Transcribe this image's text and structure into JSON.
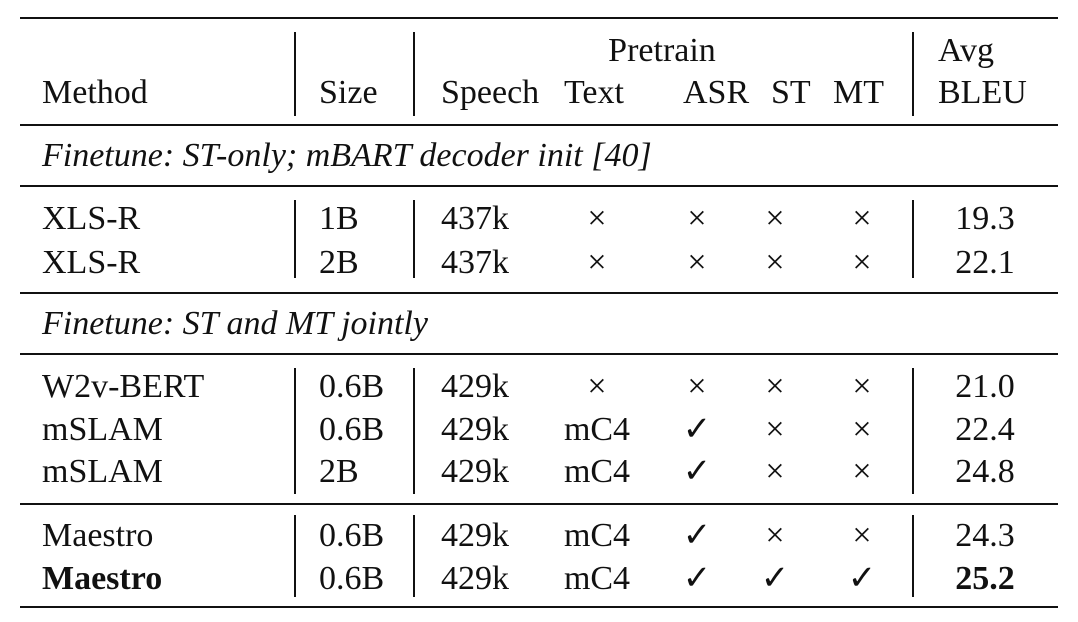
{
  "header": {
    "method": "Method",
    "size": "Size",
    "pretrain_group": "Pretrain",
    "speech": "Speech",
    "text": "Text",
    "asr": "ASR",
    "st": "ST",
    "mt": "MT",
    "avg": "Avg",
    "bleu": "BLEU"
  },
  "sections": [
    {
      "title": "Finetune: ST-only; mBART decoder init [40]",
      "rows": [
        {
          "method": "XLS-R",
          "size": "1B",
          "speech": "437k",
          "text": "×",
          "asr": "×",
          "st": "×",
          "mt": "×",
          "bleu": "19.3",
          "bold": false
        },
        {
          "method": "XLS-R",
          "size": "2B",
          "speech": "437k",
          "text": "×",
          "asr": "×",
          "st": "×",
          "mt": "×",
          "bleu": "22.1",
          "bold": false
        }
      ]
    },
    {
      "title": "Finetune: ST and MT jointly",
      "rows": [
        {
          "method": "W2v-BERT",
          "size": "0.6B",
          "speech": "429k",
          "text": "×",
          "asr": "×",
          "st": "×",
          "mt": "×",
          "bleu": "21.0",
          "bold": false
        },
        {
          "method": "mSLAM",
          "size": "0.6B",
          "speech": "429k",
          "text": "mC4",
          "asr": "✓",
          "st": "×",
          "mt": "×",
          "bleu": "22.4",
          "bold": false
        },
        {
          "method": "mSLAM",
          "size": "2B",
          "speech": "429k",
          "text": "mC4",
          "asr": "✓",
          "st": "×",
          "mt": "×",
          "bleu": "24.8",
          "bold": false
        }
      ]
    },
    {
      "title": "",
      "rows": [
        {
          "method": "Maestro",
          "size": "0.6B",
          "speech": "429k",
          "text": "mC4",
          "asr": "✓",
          "st": "×",
          "mt": "×",
          "bleu": "24.3",
          "bold": false
        },
        {
          "method": "Maestro",
          "size": "0.6B",
          "speech": "429k",
          "text": "mC4",
          "asr": "✓",
          "st": "✓",
          "mt": "✓",
          "bleu": "25.2",
          "bold": true
        }
      ]
    }
  ]
}
